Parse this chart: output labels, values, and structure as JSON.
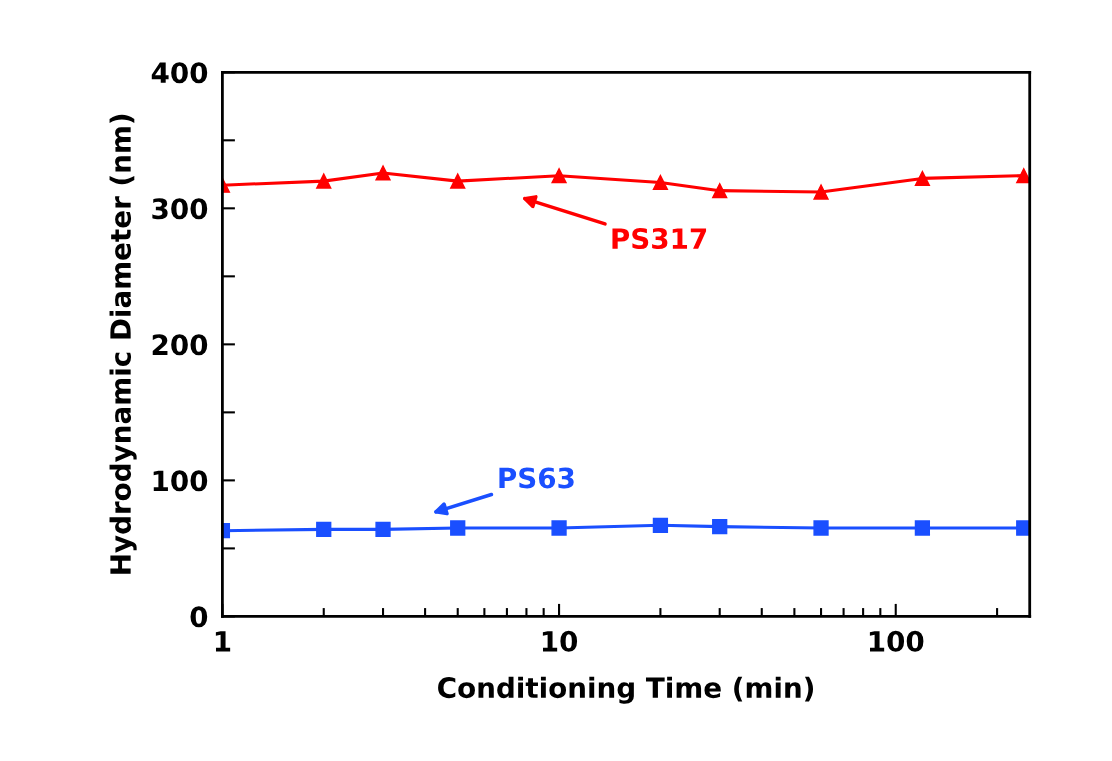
{
  "chart_data": {
    "type": "line",
    "xlabel": "Conditioning Time (min)",
    "ylabel": "Hydrodynamic Diameter (nm)",
    "x": [
      1,
      2,
      3,
      5,
      10,
      20,
      30,
      60,
      120,
      240
    ],
    "series": [
      {
        "name": "PS317",
        "color": "#ff0000",
        "marker": "triangle",
        "values": [
          317,
          320,
          326,
          320,
          324,
          319,
          313,
          312,
          322,
          324
        ]
      },
      {
        "name": "PS63",
        "color": "#1a4fff",
        "marker": "square",
        "values": [
          63,
          64,
          64,
          65,
          65,
          67,
          66,
          65,
          65,
          65
        ]
      }
    ],
    "log": "x",
    "xlim": [
      1,
      250
    ],
    "xticks": [
      1,
      10,
      100
    ],
    "ylim": [
      0,
      400
    ],
    "yticks": [
      0,
      {
        "value": 50,
        "label": null
      },
      100,
      {
        "value": 150,
        "label": null
      },
      200,
      {
        "value": 250,
        "label": null
      },
      300,
      {
        "value": 350,
        "label": null
      },
      400
    ],
    "grid": false,
    "legend": false,
    "line_style": "solid"
  }
}
